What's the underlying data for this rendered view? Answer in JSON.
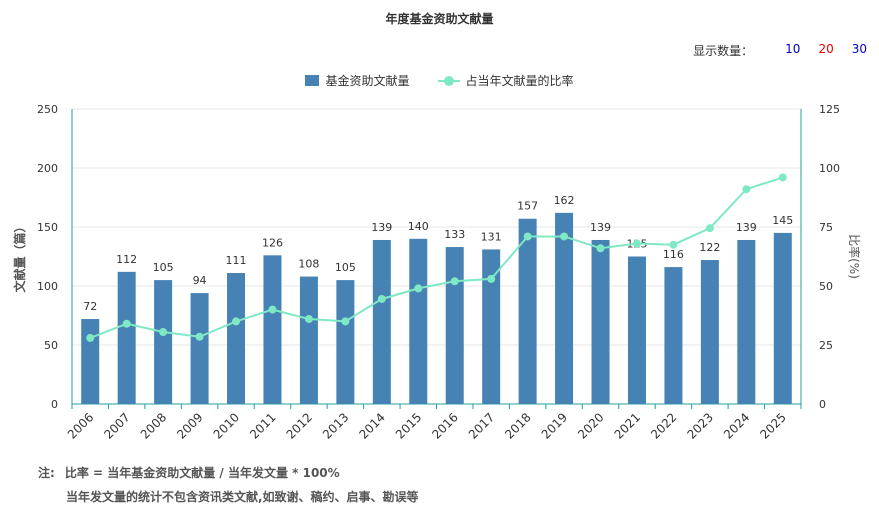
{
  "chart_data": {
    "type": "bar+line",
    "title": "年度基金资助文献量",
    "categories": [
      "2006",
      "2007",
      "2008",
      "2009",
      "2010",
      "2011",
      "2012",
      "2013",
      "2014",
      "2015",
      "2016",
      "2017",
      "2018",
      "2019",
      "2020",
      "2021",
      "2022",
      "2023",
      "2024",
      "2025"
    ],
    "series": [
      {
        "name": "基金资助文献量",
        "type": "bar",
        "axis": "left",
        "color": "#4682b4",
        "values": [
          72,
          112,
          105,
          94,
          111,
          126,
          108,
          105,
          139,
          140,
          133,
          131,
          157,
          162,
          139,
          125,
          116,
          122,
          139,
          145
        ]
      },
      {
        "name": "占当年文献量的比率",
        "type": "line",
        "axis": "right",
        "color": "#7fe8c4",
        "values": [
          28,
          34,
          30.5,
          28.5,
          35,
          40,
          36,
          35,
          44.5,
          49,
          52,
          53,
          71,
          71,
          66,
          68,
          67.5,
          74.5,
          91,
          96
        ]
      }
    ],
    "ylabel": "文献量（篇）",
    "y2label": "比率(%)",
    "ylim": [
      0,
      250
    ],
    "y2lim": [
      0,
      125
    ],
    "yticks": [
      0,
      50,
      100,
      150,
      200,
      250
    ],
    "y2ticks": [
      0,
      25,
      50,
      75,
      100,
      125
    ],
    "grid": true,
    "legend_position": "top-center"
  },
  "header": {
    "show_count_label": "显示数量：",
    "options": [
      {
        "label": "10",
        "color": "#0000cc"
      },
      {
        "label": "20",
        "color": "#e60000"
      },
      {
        "label": "30",
        "color": "#0000cc"
      }
    ]
  },
  "notes": {
    "prefix": "注:",
    "line1": "比率 = 当年基金资助文献量 / 当年发文量 * 100%",
    "line2": "当年发文量的统计不包含资讯类文献,如致谢、稿约、启事、勘误等"
  },
  "colors": {
    "axis": "#20a0a0",
    "grid": "#e5e5e5"
  }
}
